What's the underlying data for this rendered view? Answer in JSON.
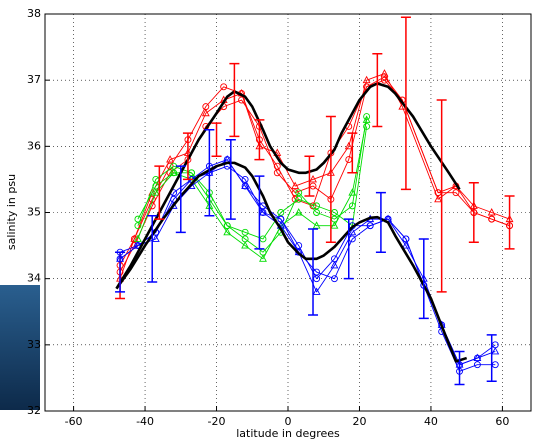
{
  "chart_data": {
    "type": "line",
    "xlabel": "latitude in degrees",
    "ylabel": "salinity in psu",
    "xlim": [
      -68,
      68
    ],
    "ylim": [
      32,
      38
    ],
    "xticks": [
      -60,
      -40,
      -20,
      0,
      20,
      40,
      60
    ],
    "yticks": [
      32,
      33,
      34,
      35,
      36,
      37,
      38
    ],
    "grid": true,
    "series": [
      {
        "color": "#ff0000",
        "marker": "o",
        "x": [
          -47,
          -43,
          -38,
          -33,
          -28,
          -23,
          -18,
          -13,
          -8,
          -3,
          2,
          7,
          12,
          17,
          22,
          27,
          32,
          42,
          47,
          52,
          57,
          62
        ],
        "values": [
          34.1,
          34.5,
          35.1,
          35.6,
          35.8,
          36.3,
          36.6,
          36.7,
          36.3,
          35.6,
          35.3,
          35.4,
          35.2,
          35.8,
          36.9,
          37.0,
          36.7,
          35.3,
          35.4,
          35.0,
          34.9,
          34.8
        ]
      },
      {
        "color": "#ff0000",
        "marker": "^",
        "x": [
          -47,
          -43,
          -38,
          -33,
          -28,
          -23,
          -18,
          -13,
          -8,
          -3,
          2,
          7,
          12,
          17,
          22,
          27,
          32,
          42,
          47,
          52,
          57,
          62
        ],
        "values": [
          34.0,
          34.6,
          35.3,
          35.8,
          35.9,
          36.5,
          36.7,
          36.8,
          36.0,
          35.9,
          35.4,
          35.5,
          35.6,
          36.0,
          37.0,
          37.1,
          36.6,
          35.2,
          35.4,
          35.1,
          35.0,
          34.9
        ]
      },
      {
        "color": "#ff0000",
        "marker": "o",
        "x": [
          -47,
          -43,
          -38,
          -33,
          -28,
          -23,
          -18,
          -13,
          -8,
          -3,
          2,
          7,
          12,
          17,
          22,
          27,
          32,
          42,
          47,
          52,
          57,
          62
        ],
        "values": [
          34.2,
          34.6,
          35.2,
          35.7,
          36.1,
          36.6,
          36.9,
          36.8,
          36.1,
          35.7,
          35.2,
          35.1,
          35.9,
          36.3,
          36.9,
          37.05,
          36.7,
          35.3,
          35.3,
          35.0,
          34.9,
          34.8
        ]
      },
      {
        "color": "#00dd00",
        "marker": "o",
        "x": [
          -42,
          -37,
          -32,
          -27,
          -22,
          -17,
          -12,
          -7,
          -2,
          3,
          8,
          13,
          18,
          22
        ],
        "values": [
          34.8,
          35.5,
          35.7,
          35.6,
          35.2,
          34.8,
          34.6,
          34.4,
          34.7,
          35.3,
          35.0,
          34.9,
          35.1,
          36.45
        ]
      },
      {
        "color": "#00dd00",
        "marker": "^",
        "x": [
          -42,
          -37,
          -32,
          -27,
          -22,
          -17,
          -12,
          -7,
          -2,
          3,
          8,
          13,
          18,
          22
        ],
        "values": [
          34.6,
          35.3,
          35.6,
          35.5,
          35.1,
          34.7,
          34.5,
          34.3,
          34.8,
          35.0,
          34.8,
          34.8,
          35.3,
          36.4
        ]
      },
      {
        "color": "#00dd00",
        "marker": "o",
        "x": [
          -42,
          -37,
          -32,
          -27,
          -22,
          -17,
          -12,
          -7,
          -2,
          3,
          8,
          13,
          18,
          22
        ],
        "values": [
          34.9,
          35.4,
          35.6,
          35.6,
          35.3,
          34.8,
          34.7,
          34.6,
          35.0,
          35.2,
          35.1,
          35.0,
          34.8,
          36.3
        ]
      },
      {
        "color": "#0000ff",
        "marker": "o",
        "x": [
          -47,
          -42,
          -37,
          -32,
          -27,
          -22,
          -17,
          -12,
          -7,
          -2,
          3,
          8,
          13,
          18,
          23,
          28,
          33,
          38,
          43,
          48,
          53,
          58
        ],
        "values": [
          34.3,
          34.5,
          34.7,
          35.2,
          35.5,
          35.7,
          35.8,
          35.4,
          35.1,
          34.9,
          34.4,
          34.1,
          34.0,
          34.6,
          34.8,
          34.9,
          34.6,
          33.9,
          33.2,
          32.6,
          32.7,
          32.7
        ]
      },
      {
        "color": "#0000ff",
        "marker": "^",
        "x": [
          -47,
          -42,
          -37,
          -32,
          -27,
          -22,
          -17,
          -12,
          -7,
          -2,
          3,
          8,
          13,
          18,
          23,
          28,
          33,
          38,
          43,
          48,
          53,
          58
        ],
        "values": [
          34.3,
          34.5,
          34.6,
          35.1,
          35.4,
          35.6,
          35.8,
          35.4,
          35.0,
          34.8,
          34.4,
          33.8,
          34.2,
          34.7,
          34.9,
          34.9,
          34.5,
          34.0,
          33.3,
          32.7,
          32.8,
          32.9
        ]
      },
      {
        "color": "#0000ff",
        "marker": "o",
        "x": [
          -47,
          -42,
          -37,
          -32,
          -27,
          -22,
          -17,
          -12,
          -7,
          -2,
          3,
          8,
          13,
          18,
          23,
          28,
          33,
          38,
          43,
          48,
          53,
          58
        ],
        "values": [
          34.4,
          34.5,
          34.7,
          35.3,
          35.5,
          35.6,
          35.7,
          35.5,
          35.0,
          34.9,
          34.5,
          34.0,
          34.3,
          34.8,
          34.8,
          34.9,
          34.6,
          33.9,
          33.3,
          32.7,
          32.8,
          33.0
        ]
      },
      {
        "color": "#000000",
        "marker": "none",
        "x": [
          -48,
          -44,
          -40,
          -35,
          -30,
          -25,
          -20,
          -17,
          -15,
          -12,
          -10,
          -7,
          -5,
          -2,
          0,
          3,
          5,
          8,
          10,
          13,
          15,
          18,
          20,
          23,
          25,
          28,
          30,
          35,
          40,
          45,
          48
        ],
        "values": [
          33.85,
          34.2,
          34.6,
          35.1,
          35.6,
          36.1,
          36.5,
          36.75,
          36.83,
          36.75,
          36.6,
          36.25,
          36.0,
          35.75,
          35.65,
          35.6,
          35.6,
          35.65,
          35.75,
          35.95,
          36.2,
          36.5,
          36.7,
          36.9,
          36.95,
          36.9,
          36.8,
          36.45,
          36.0,
          35.6,
          35.35
        ]
      },
      {
        "color": "#000000",
        "marker": "none",
        "x": [
          -48,
          -44,
          -40,
          -35,
          -30,
          -25,
          -20,
          -17,
          -15,
          -12,
          -10,
          -7,
          -5,
          -2,
          0,
          3,
          5,
          8,
          10,
          13,
          15,
          18,
          20,
          23,
          25,
          28,
          30,
          35,
          40,
          44,
          47,
          50
        ],
        "values": [
          33.85,
          34.15,
          34.5,
          34.9,
          35.25,
          35.55,
          35.7,
          35.75,
          35.75,
          35.68,
          35.55,
          35.25,
          35.0,
          34.75,
          34.55,
          34.38,
          34.3,
          34.3,
          34.35,
          34.48,
          34.6,
          34.78,
          34.85,
          34.92,
          34.93,
          34.85,
          34.65,
          34.2,
          33.7,
          33.15,
          32.75,
          32.8
        ]
      }
    ],
    "errorbars": [
      {
        "color": "#ff0000",
        "x": [
          -47,
          -36,
          -28,
          -20,
          -15,
          -8,
          6,
          12,
          18,
          25,
          33,
          43,
          52,
          62
        ],
        "values": [
          34.05,
          35.3,
          35.85,
          36.1,
          36.7,
          36.1,
          35.55,
          35.5,
          35.9,
          36.85,
          36.65,
          35.25,
          35.0,
          34.85
        ],
        "errors": [
          0.35,
          0.4,
          0.35,
          0.25,
          0.55,
          0.3,
          0.3,
          0.95,
          0.3,
          0.55,
          1.3,
          1.45,
          0.45,
          0.4
        ]
      },
      {
        "color": "#0000ff",
        "x": [
          -47,
          -38,
          -30,
          -22,
          -16,
          -8,
          7,
          17,
          26,
          38,
          48,
          57
        ],
        "values": [
          34.1,
          34.45,
          35.2,
          35.6,
          35.5,
          35.0,
          34.1,
          34.45,
          34.85,
          34.0,
          32.65,
          32.8
        ],
        "errors": [
          0.3,
          0.5,
          0.5,
          0.65,
          0.6,
          0.55,
          0.65,
          0.45,
          0.45,
          0.6,
          0.25,
          0.35
        ]
      }
    ]
  }
}
